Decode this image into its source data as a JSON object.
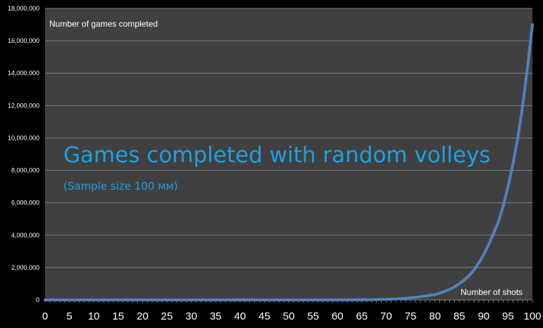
{
  "chart_data": {
    "type": "line",
    "title": "Games completed with random volleys",
    "subtitle": "(Sample size 100 мм)",
    "xlabel": "Number of shots",
    "ylabel": "Number of games completed",
    "xlim": [
      0,
      100
    ],
    "ylim": [
      0,
      18000000
    ],
    "x_ticks": [
      0,
      5,
      10,
      15,
      20,
      25,
      30,
      35,
      40,
      45,
      50,
      55,
      60,
      65,
      70,
      75,
      80,
      85,
      90,
      95,
      100
    ],
    "y_ticks": [
      0,
      2000000,
      4000000,
      6000000,
      8000000,
      10000000,
      12000000,
      14000000,
      16000000,
      18000000
    ],
    "y_tick_labels": [
      "0",
      "2,000,000",
      "4,000,000",
      "6,000,000",
      "8,000,000",
      "10,000,000",
      "12,000,000",
      "14,000,000",
      "16,000,000",
      "18,000,000"
    ],
    "grid": true,
    "colors": {
      "background": "#000000",
      "plot_area": "#404040",
      "gridline": "#7f7f7f",
      "line": "#4f81bd",
      "title": "#1ba1e2",
      "text": "#ffffff"
    },
    "series": [
      {
        "x": [
          0,
          5,
          10,
          15,
          20,
          25,
          30,
          35,
          40,
          45,
          50,
          55,
          60,
          65,
          68,
          70,
          72,
          74,
          76,
          78,
          80,
          81,
          82,
          83,
          84,
          85,
          86,
          87,
          88,
          89,
          90,
          91,
          92,
          93,
          94,
          95,
          96,
          97,
          98,
          99,
          100
        ],
        "values": [
          0,
          0,
          0,
          0,
          0,
          0,
          0,
          0,
          0,
          0,
          0,
          0,
          0,
          5000,
          20000,
          40000,
          60000,
          100000,
          160000,
          240000,
          330000,
          420000,
          530000,
          650000,
          800000,
          1000000,
          1230000,
          1500000,
          1850000,
          2300000,
          2800000,
          3400000,
          4100000,
          4800000,
          5800000,
          7000000,
          8400000,
          10000000,
          12000000,
          14400000,
          17000000
        ]
      }
    ]
  }
}
